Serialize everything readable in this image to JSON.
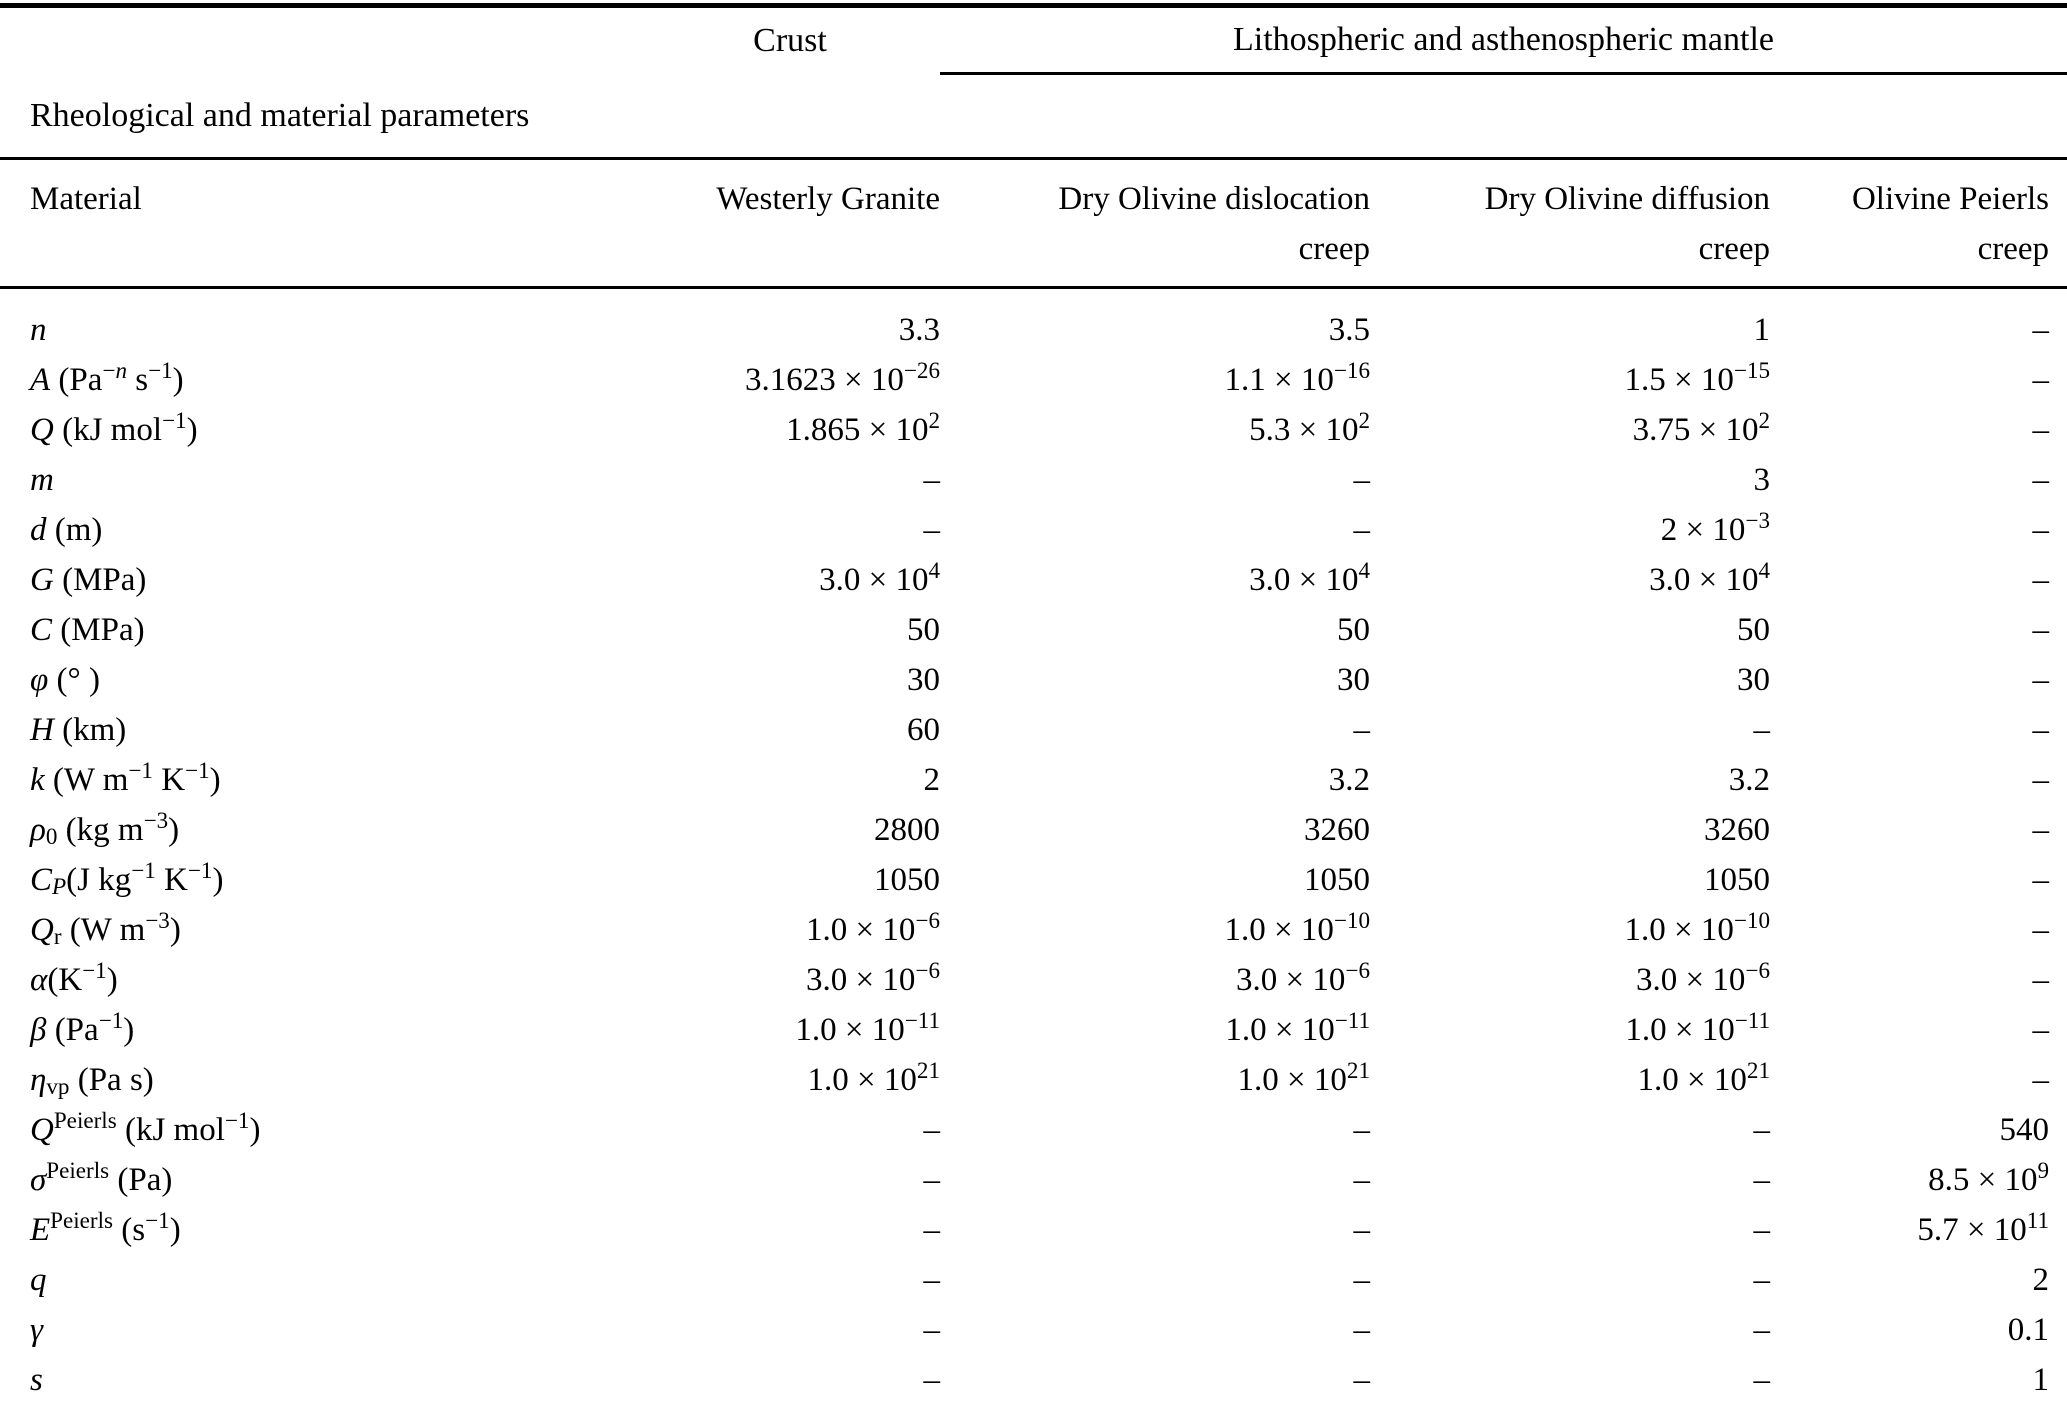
{
  "header": {
    "group_crust": "Crust",
    "group_mantle": "Lithospheric and asthenospheric mantle",
    "section_label": "Rheological and material parameters"
  },
  "table": {
    "empty_marker": "–",
    "columns": [
      {
        "name": "material",
        "lines": [
          "Material"
        ]
      },
      {
        "name": "westerly-granite",
        "lines": [
          "Westerly Granite"
        ]
      },
      {
        "name": "dry-olivine-dislocation-creep",
        "lines": [
          "Dry Olivine dislocation",
          "creep"
        ]
      },
      {
        "name": "dry-olivine-diffusion-creep",
        "lines": [
          "Dry Olivine diffusion",
          "creep"
        ]
      },
      {
        "name": "olivine-peierls-creep",
        "lines": [
          "Olivine Peierls",
          "creep"
        ]
      }
    ],
    "rows": [
      {
        "label": "*n*",
        "values": [
          "3.3",
          "3.5",
          "1",
          "–"
        ]
      },
      {
        "label": "*A* (Pa^{−*n*} s^{−1})",
        "values": [
          "3.1623 × 10^{−26}",
          "1.1 × 10^{−16}",
          "1.5 × 10^{−15}",
          "–"
        ]
      },
      {
        "label": "*Q* (kJ mol^{−1})",
        "values": [
          "1.865 × 10^{2}",
          "5.3 × 10^{2}",
          "3.75 × 10^{2}",
          "–"
        ]
      },
      {
        "label": "*m*",
        "values": [
          "–",
          "–",
          "3",
          "–"
        ]
      },
      {
        "label": "*d* (m)",
        "values": [
          "–",
          "–",
          "2 × 10^{−3}",
          "–"
        ]
      },
      {
        "label": "*G* (MPa)",
        "values": [
          "3.0 × 10^{4}",
          "3.0 × 10^{4}",
          "3.0 × 10^{4}",
          "–"
        ]
      },
      {
        "label": "*C* (MPa)",
        "values": [
          "50",
          "50",
          "50",
          "–"
        ]
      },
      {
        "label": "*φ* (° )",
        "values": [
          "30",
          "30",
          "30",
          "–"
        ]
      },
      {
        "label": "*H* (km)",
        "values": [
          "60",
          "–",
          "–",
          "–"
        ]
      },
      {
        "label": "*k* (W m^{−1} K^{−1})",
        "values": [
          "2",
          "3.2",
          "3.2",
          "–"
        ]
      },
      {
        "label": "*ρ*_{0} (kg m^{−3})",
        "values": [
          "2800",
          "3260",
          "3260",
          "–"
        ]
      },
      {
        "label": "*C*_{*P*}(J kg^{−1} K^{−1})",
        "values": [
          "1050",
          "1050",
          "1050",
          "–"
        ]
      },
      {
        "label": "*Q*_{r} (W m^{−3})",
        "values": [
          "1.0 × 10^{−6}",
          "1.0 × 10^{−10}",
          "1.0 × 10^{−10}",
          "–"
        ]
      },
      {
        "label": "*α*(K^{−1})",
        "values": [
          "3.0 × 10^{−6}",
          "3.0 × 10^{−6}",
          "3.0 × 10^{−6}",
          "–"
        ]
      },
      {
        "label": "*β* (Pa^{−1})",
        "values": [
          "1.0 × 10^{−11}",
          "1.0 × 10^{−11}",
          "1.0 × 10^{−11}",
          "–"
        ]
      },
      {
        "label": "*η*_{vp} (Pa s)",
        "values": [
          "1.0 × 10^{21}",
          "1.0 × 10^{21}",
          "1.0 × 10^{21}",
          "–"
        ]
      },
      {
        "label": "*Q*^{Peierls} (kJ mol^{−1})",
        "values": [
          "–",
          "–",
          "–",
          "540"
        ]
      },
      {
        "label": "*σ*^{Peierls} (Pa)",
        "values": [
          "–",
          "–",
          "–",
          "8.5 × 10^{9}"
        ]
      },
      {
        "label": "*E*^{Peierls} (s^{−1})",
        "values": [
          "–",
          "–",
          "–",
          "5.7 × 10^{11}"
        ]
      },
      {
        "label": "*q*",
        "values": [
          "–",
          "–",
          "–",
          "2"
        ]
      },
      {
        "label": "*γ*",
        "values": [
          "–",
          "–",
          "–",
          "0.1"
        ]
      },
      {
        "label": "*s*",
        "values": [
          "–",
          "–",
          "–",
          "1"
        ]
      }
    ]
  }
}
